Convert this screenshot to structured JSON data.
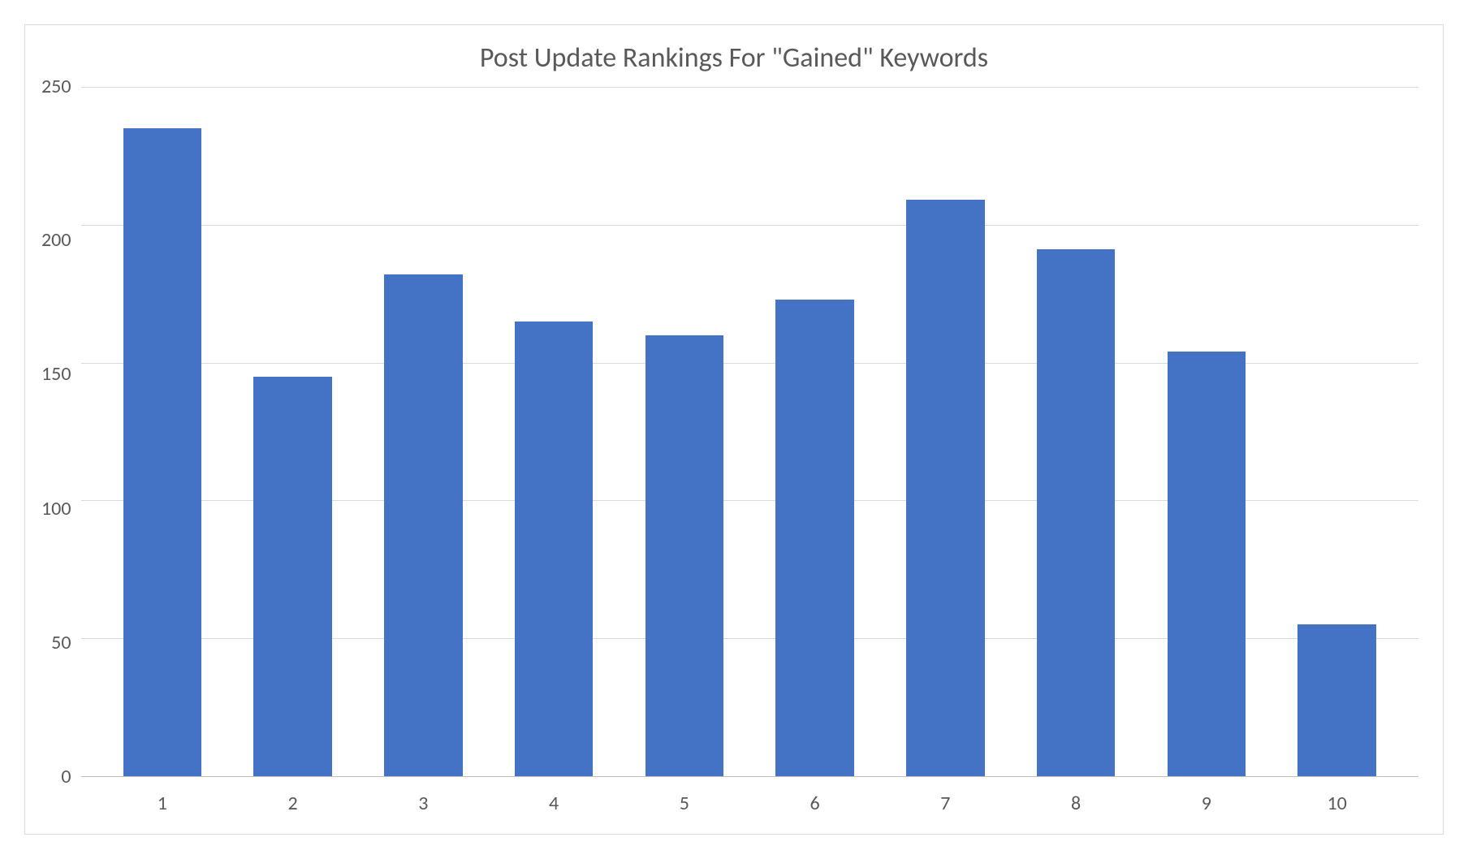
{
  "chart": {
    "type": "bar",
    "title": "Post Update Rankings For \"Gained\" Keywords",
    "title_fontsize": 34,
    "title_color": "#595959",
    "categories": [
      "1",
      "2",
      "3",
      "4",
      "5",
      "6",
      "7",
      "8",
      "9",
      "10"
    ],
    "values": [
      235,
      145,
      182,
      165,
      160,
      173,
      209,
      191,
      154,
      55
    ],
    "bar_color": "#4472c4",
    "bar_width": 0.6,
    "ylim": [
      0,
      250
    ],
    "ytick_step": 50,
    "ytick_labels": [
      "250",
      "200",
      "150",
      "100",
      "50",
      "0"
    ],
    "axis_label_fontsize": 24,
    "axis_label_color": "#595959",
    "background_color": "#ffffff",
    "grid_color": "#d9d9d9",
    "border_color": "#d9d9d9",
    "baseline_color": "#bfbfbf"
  }
}
